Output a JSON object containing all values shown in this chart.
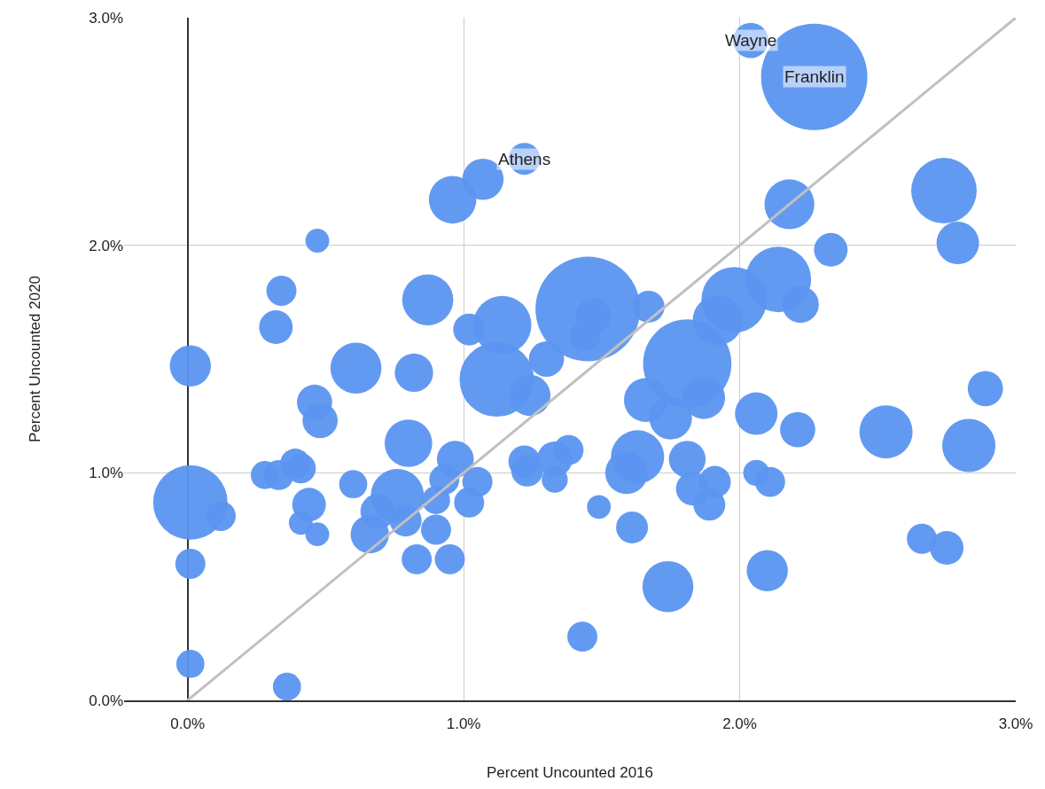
{
  "chart_data": {
    "type": "bubble",
    "xlabel": "Percent Uncounted 2016",
    "ylabel": "Percent Uncounted 2020",
    "xlim": [
      -0.23,
      3.0
    ],
    "ylim": [
      0,
      3.0
    ],
    "xticks": [
      {
        "value": 0,
        "label": "0.0%"
      },
      {
        "value": 1,
        "label": "1.0%"
      },
      {
        "value": 2,
        "label": "2.0%"
      },
      {
        "value": 3,
        "label": "3.0%"
      }
    ],
    "yticks": [
      {
        "value": 0,
        "label": "0.0%"
      },
      {
        "value": 1,
        "label": "1.0%"
      },
      {
        "value": 2,
        "label": "2.0%"
      },
      {
        "value": 3,
        "label": "3.0%"
      }
    ],
    "grid": true,
    "series": [
      {
        "color": "#5b95f0",
        "x": [
          2.04,
          2.27,
          1.22,
          1.07,
          0.96,
          0.47,
          0.34,
          0.32,
          0.01,
          0.61,
          0.82,
          0.87,
          0.46,
          0.48,
          0.8,
          1.02,
          1.14,
          1.12,
          1.3,
          1.24,
          1.45,
          1.47,
          1.44,
          1.67,
          1.98,
          2.14,
          2.22,
          2.33,
          2.18,
          2.74,
          2.79,
          1.81,
          1.92,
          1.66,
          1.75,
          1.87,
          2.06,
          2.21,
          2.53,
          2.83,
          2.89,
          0.01,
          0.12,
          0.01,
          0.01,
          0.36,
          0.28,
          0.33,
          0.39,
          0.41,
          0.6,
          0.44,
          0.41,
          0.47,
          0.76,
          0.69,
          0.66,
          0.79,
          0.9,
          0.83,
          0.95,
          0.97,
          0.93,
          0.9,
          1.05,
          1.02,
          1.22,
          1.23,
          1.33,
          1.38,
          1.33,
          1.63,
          1.59,
          1.81,
          1.83,
          1.91,
          1.89,
          1.49,
          1.61,
          1.74,
          1.43,
          2.06,
          2.11,
          2.1,
          2.66,
          2.75
        ],
        "values": [
          2.9,
          2.74,
          2.38,
          2.29,
          2.2,
          2.02,
          1.8,
          1.64,
          1.47,
          1.46,
          1.44,
          1.76,
          1.31,
          1.23,
          1.13,
          1.63,
          1.65,
          1.41,
          1.5,
          1.34,
          1.72,
          1.69,
          1.6,
          1.73,
          1.76,
          1.85,
          1.74,
          1.98,
          2.18,
          2.24,
          2.01,
          1.48,
          1.67,
          1.32,
          1.24,
          1.33,
          1.26,
          1.19,
          1.18,
          1.12,
          1.37,
          0.87,
          0.81,
          0.6,
          0.16,
          0.06,
          0.99,
          0.99,
          1.04,
          1.02,
          0.95,
          0.86,
          0.78,
          0.73,
          0.9,
          0.83,
          0.73,
          0.79,
          0.75,
          0.62,
          0.62,
          1.06,
          0.97,
          0.88,
          0.96,
          0.87,
          1.05,
          1.01,
          0.97,
          1.1,
          1.06,
          1.07,
          1.0,
          1.06,
          0.93,
          0.96,
          0.86,
          0.85,
          0.76,
          0.5,
          0.28,
          1.0,
          0.96,
          0.57,
          0.71,
          0.67
        ],
        "sizes": [
          0.11,
          1,
          0.09,
          0.15,
          0.2,
          0.05,
          0.08,
          0.1,
          0.15,
          0.23,
          0.13,
          0.23,
          0.11,
          0.11,
          0.2,
          0.09,
          0.3,
          0.49,
          0.11,
          0.15,
          0.97,
          0.11,
          0.08,
          0.09,
          0.38,
          0.38,
          0.12,
          0.1,
          0.22,
          0.38,
          0.16,
          0.69,
          0.22,
          0.17,
          0.16,
          0.16,
          0.16,
          0.11,
          0.25,
          0.25,
          0.11,
          0.49,
          0.08,
          0.08,
          0.07,
          0.07,
          0.07,
          0.08,
          0.08,
          0.08,
          0.07,
          0.1,
          0.05,
          0.05,
          0.25,
          0.11,
          0.13,
          0.09,
          0.08,
          0.08,
          0.08,
          0.12,
          0.08,
          0.07,
          0.08,
          0.08,
          0.09,
          0.09,
          0.06,
          0.08,
          0.11,
          0.25,
          0.16,
          0.12,
          0.1,
          0.09,
          0.09,
          0.05,
          0.09,
          0.23,
          0.08,
          0.06,
          0.08,
          0.15,
          0.08,
          0.1
        ]
      },
      {
        "type": "line",
        "color": "#c0c0c0",
        "x": [
          0,
          3
        ],
        "values": [
          0,
          3
        ]
      }
    ],
    "annotations": [
      {
        "text": "Wayne",
        "x": 2.04,
        "y": 2.9
      },
      {
        "text": "Franklin",
        "x": 2.27,
        "y": 2.74
      },
      {
        "text": "Athens",
        "x": 1.22,
        "y": 2.38
      }
    ]
  }
}
